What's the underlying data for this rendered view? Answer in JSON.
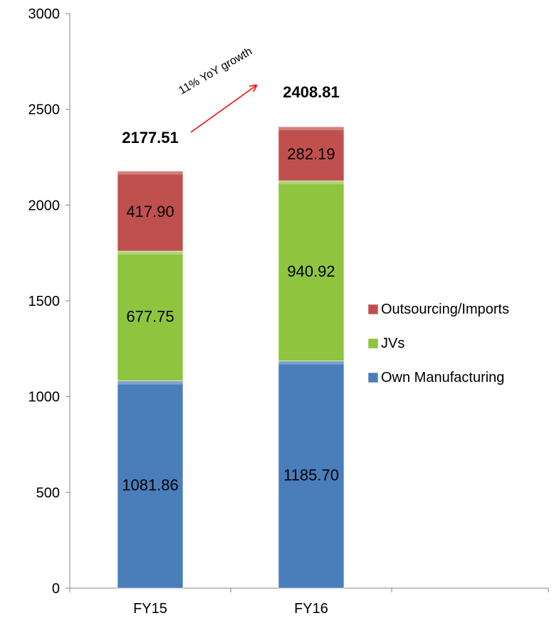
{
  "chart_data": {
    "type": "bar",
    "stacked": true,
    "categories": [
      "FY15",
      "FY16"
    ],
    "series": [
      {
        "name": "Own Manufacturing",
        "color": "#4a7ebb",
        "values": [
          1081.86,
          1185.7
        ],
        "labels": [
          "1081.86",
          "1185.70"
        ]
      },
      {
        "name": "JVs",
        "color": "#8fc43f",
        "values": [
          677.75,
          940.92
        ],
        "labels": [
          "677.75",
          "940.92"
        ]
      },
      {
        "name": "Outsourcing/Imports",
        "color": "#c0504d",
        "values": [
          417.9,
          282.19
        ],
        "labels": [
          "417.90",
          "282.19"
        ]
      }
    ],
    "totals": [
      "2177.51",
      "2408.81"
    ],
    "ylim": [
      0,
      3000
    ],
    "yticks": [
      "0",
      "500",
      "1000",
      "1500",
      "2000",
      "2500",
      "3000"
    ],
    "ytick_values": [
      0,
      500,
      1000,
      1500,
      2000,
      2500,
      3000
    ],
    "legend_position": "right",
    "legend_order": [
      "Outsourcing/Imports",
      "JVs",
      "Own Manufacturing"
    ],
    "annotation": {
      "text": "11% YoY growth",
      "color": "#ff0000"
    },
    "xlabel": "",
    "ylabel": "",
    "grid": false
  }
}
